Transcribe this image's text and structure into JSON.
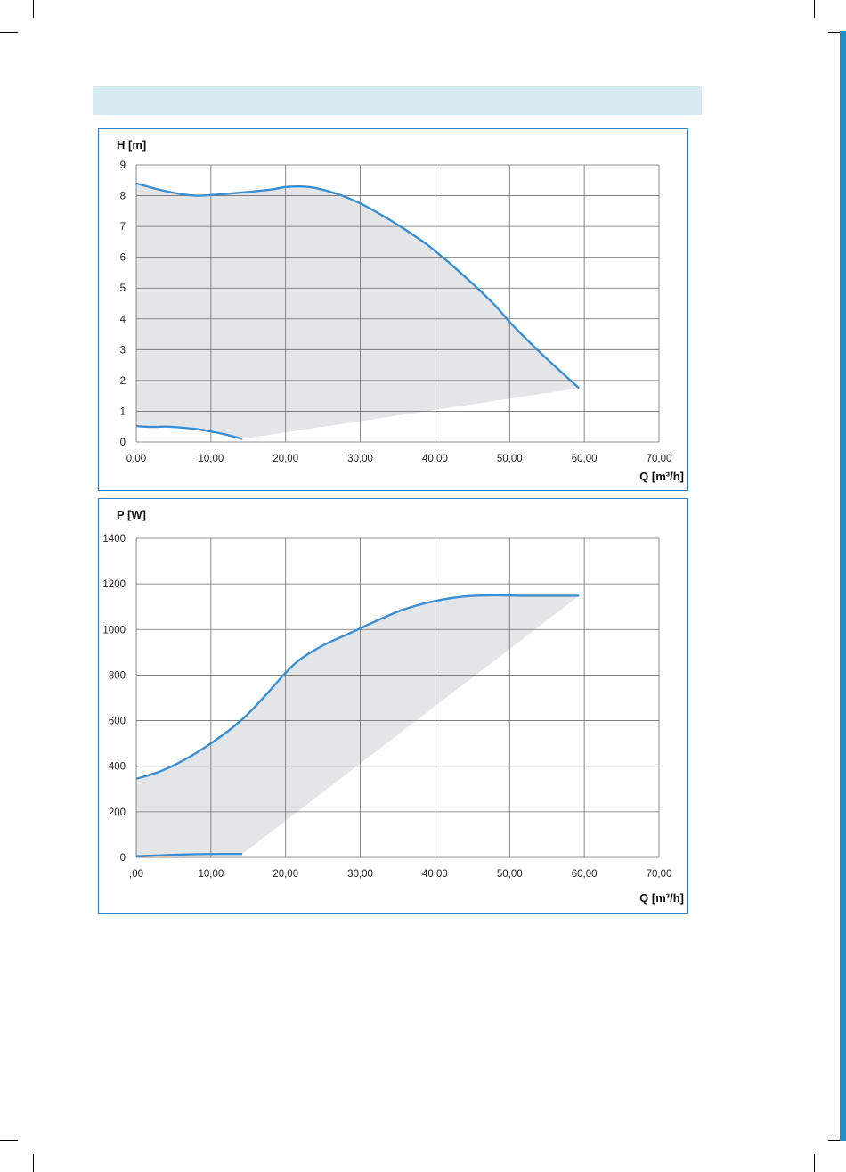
{
  "colors": {
    "curve": "#3a8fd3",
    "area_fill": "#e3e5e7",
    "grid": "#6e6e6e",
    "frame": "#2f7fbf",
    "header_band": "#d6ebf3",
    "side_strip": "#1e8ec8"
  },
  "chart_data": [
    {
      "type": "area",
      "title": "H [m]",
      "xlabel": "Q [m³/h]",
      "xlim": [
        0,
        70
      ],
      "ylim": [
        0,
        9
      ],
      "x_ticks": [
        "0,00",
        "10,00",
        "20,00",
        "30,00",
        "40,00",
        "50,00",
        "60,00",
        "70,00"
      ],
      "y_ticks": [
        "0",
        "1",
        "2",
        "3",
        "4",
        "5",
        "6",
        "7",
        "8",
        "9"
      ],
      "grid": true,
      "series": [
        {
          "x": [
            0,
            3,
            6,
            8,
            10,
            14,
            18,
            20,
            22,
            24,
            27,
            30,
            33,
            36,
            39,
            42,
            45,
            48,
            50,
            52,
            55,
            59.3
          ],
          "y": [
            8.4,
            8.2,
            8.05,
            8.0,
            8.02,
            8.1,
            8.2,
            8.28,
            8.3,
            8.25,
            8.05,
            7.75,
            7.35,
            6.9,
            6.4,
            5.8,
            5.15,
            4.45,
            3.9,
            3.4,
            2.7,
            1.75
          ]
        },
        {
          "x": [
            0,
            2,
            4,
            6,
            8,
            10,
            12,
            14.2
          ],
          "y": [
            0.52,
            0.49,
            0.5,
            0.47,
            0.42,
            0.34,
            0.24,
            0.1
          ]
        }
      ]
    },
    {
      "type": "area",
      "title": "P [W]",
      "xlabel": "Q [m³/h]",
      "xlim": [
        0,
        70
      ],
      "ylim": [
        0,
        1400
      ],
      "x_ticks": [
        ",00",
        "10,00",
        "20,00",
        "30,00",
        "40,00",
        "50,00",
        "60,00",
        "70,00"
      ],
      "y_ticks": [
        "0",
        "200",
        "400",
        "600",
        "800",
        "1000",
        "1200",
        "1400"
      ],
      "grid": true,
      "series": [
        {
          "x": [
            0,
            3,
            6,
            10,
            14,
            17,
            20,
            22,
            25,
            28,
            30,
            33,
            36,
            40,
            44,
            48,
            52,
            56,
            59.3
          ],
          "y": [
            345,
            375,
            420,
            500,
            600,
            700,
            810,
            870,
            930,
            975,
            1005,
            1050,
            1090,
            1125,
            1145,
            1150,
            1148,
            1148,
            1148
          ]
        },
        {
          "x": [
            0,
            4,
            8,
            12,
            14.2
          ],
          "y": [
            5,
            10,
            14,
            15,
            15
          ]
        }
      ]
    }
  ]
}
